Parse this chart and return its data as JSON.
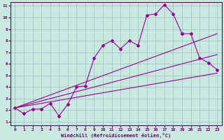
{
  "bg_color": "#c8e8e0",
  "grid_color": "#9bbfba",
  "line_color": "#990099",
  "xlabel": "Windchill (Refroidissement éolien,°C)",
  "xlim": [
    -0.5,
    23.5
  ],
  "ylim": [
    0.7,
    11.3
  ],
  "xticks": [
    0,
    1,
    2,
    3,
    4,
    5,
    6,
    7,
    8,
    9,
    10,
    11,
    12,
    13,
    14,
    15,
    16,
    17,
    18,
    19,
    20,
    21,
    22,
    23
  ],
  "yticks": [
    1,
    2,
    3,
    4,
    5,
    6,
    7,
    8,
    9,
    10,
    11
  ],
  "main_x": [
    0,
    1,
    2,
    3,
    4,
    5,
    6,
    7,
    8,
    9,
    10,
    11,
    12,
    13,
    14,
    15,
    16,
    17,
    18,
    19
  ],
  "main_y": [
    2.2,
    1.7,
    2.1,
    2.1,
    2.6,
    1.5,
    2.5,
    4.0,
    4.1,
    6.5,
    7.6,
    8.0,
    7.3,
    8.0,
    7.6,
    10.2,
    10.3,
    11.1,
    10.3,
    8.6
  ],
  "right_x": [
    19,
    20,
    21,
    22,
    23
  ],
  "right_y": [
    8.6,
    8.6,
    6.5,
    6.1,
    5.5
  ],
  "low_line_x": [
    0,
    23
  ],
  "low_line_y": [
    2.2,
    5.2
  ],
  "mid_line_x": [
    0,
    23
  ],
  "mid_line_y": [
    2.2,
    6.8
  ],
  "top_line_x": [
    0,
    23
  ],
  "top_line_y": [
    2.2,
    8.6
  ]
}
